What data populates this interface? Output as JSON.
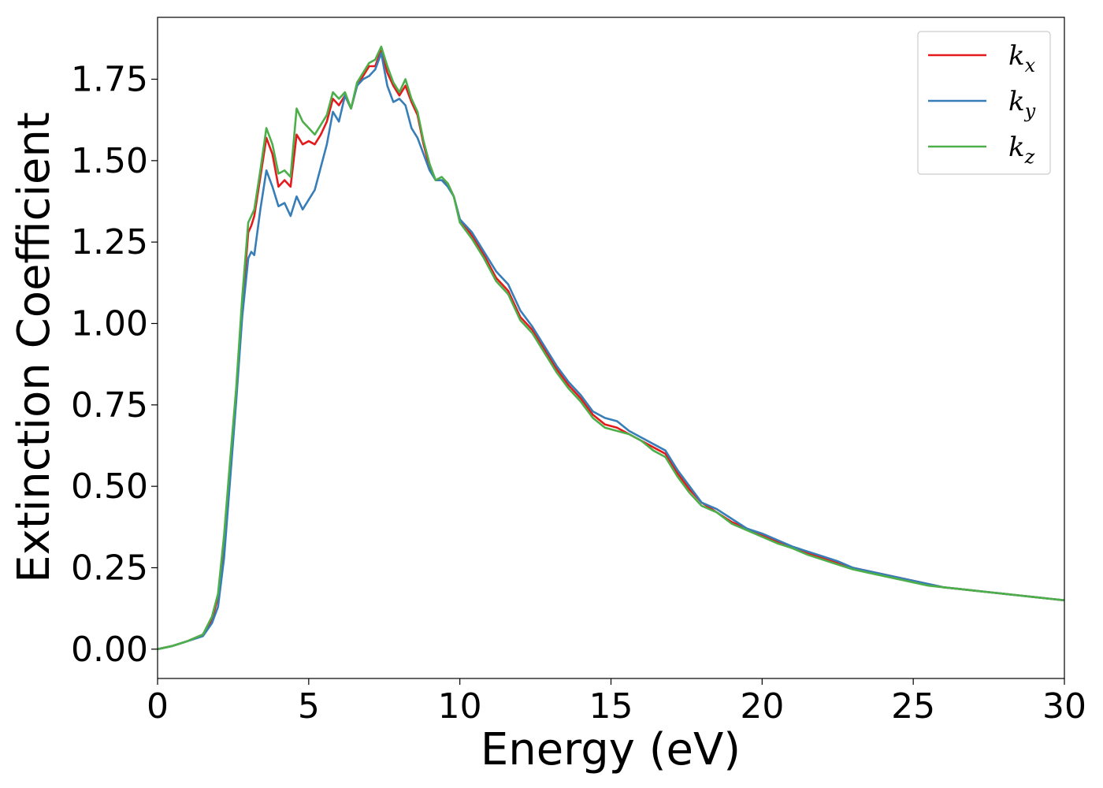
{
  "chart_data": {
    "type": "line",
    "title": "",
    "xlabel": "Energy (eV)",
    "ylabel": "Extinction Coefficient",
    "xlim": [
      0,
      30
    ],
    "ylim": [
      -0.09,
      1.94
    ],
    "xticks": [
      0,
      5,
      10,
      15,
      20,
      25,
      30
    ],
    "yticks": [
      0.0,
      0.25,
      0.5,
      0.75,
      1.0,
      1.25,
      1.5,
      1.75
    ],
    "xtick_labels": [
      "0",
      "5",
      "10",
      "15",
      "20",
      "25",
      "30"
    ],
    "ytick_labels": [
      "0.00",
      "0.25",
      "0.50",
      "0.75",
      "1.00",
      "1.25",
      "1.50",
      "1.75"
    ],
    "grid": false,
    "legend_position": "top-right",
    "series": [
      {
        "name": "k_x",
        "legend_main": "k",
        "legend_sub": "x",
        "color": "#e41a1c",
        "x": [
          0,
          0.5,
          1.0,
          1.5,
          1.8,
          2.0,
          2.2,
          2.4,
          2.6,
          2.8,
          3.0,
          3.1,
          3.2,
          3.4,
          3.6,
          3.8,
          4.0,
          4.2,
          4.4,
          4.6,
          4.8,
          5.0,
          5.2,
          5.4,
          5.6,
          5.8,
          6.0,
          6.2,
          6.4,
          6.6,
          6.8,
          7.0,
          7.2,
          7.4,
          7.6,
          7.8,
          8.0,
          8.2,
          8.4,
          8.6,
          8.8,
          9.0,
          9.2,
          9.4,
          9.6,
          9.8,
          10.0,
          10.4,
          10.8,
          11.2,
          11.6,
          12.0,
          12.4,
          12.8,
          13.2,
          13.6,
          14.0,
          14.4,
          14.8,
          15.2,
          15.6,
          16.0,
          16.4,
          16.8,
          17.2,
          17.6,
          18.0,
          18.5,
          19.0,
          19.5,
          20.0,
          20.5,
          21.0,
          21.5,
          22.0,
          22.5,
          23.0,
          23.5,
          24.0,
          24.5,
          25.0,
          25.5,
          26.0,
          26.5,
          27.0,
          27.5,
          28.0,
          28.5,
          29.0,
          29.5,
          30.0
        ],
        "y": [
          0.0,
          0.01,
          0.025,
          0.045,
          0.09,
          0.16,
          0.33,
          0.56,
          0.78,
          1.05,
          1.28,
          1.3,
          1.33,
          1.45,
          1.57,
          1.52,
          1.42,
          1.44,
          1.42,
          1.58,
          1.55,
          1.56,
          1.55,
          1.58,
          1.62,
          1.69,
          1.67,
          1.7,
          1.66,
          1.73,
          1.76,
          1.79,
          1.79,
          1.84,
          1.77,
          1.73,
          1.7,
          1.73,
          1.68,
          1.64,
          1.55,
          1.48,
          1.44,
          1.44,
          1.43,
          1.39,
          1.32,
          1.27,
          1.21,
          1.14,
          1.1,
          1.02,
          0.98,
          0.92,
          0.86,
          0.81,
          0.77,
          0.72,
          0.69,
          0.68,
          0.66,
          0.64,
          0.62,
          0.6,
          0.54,
          0.49,
          0.45,
          0.42,
          0.39,
          0.37,
          0.35,
          0.33,
          0.31,
          0.295,
          0.28,
          0.265,
          0.25,
          0.24,
          0.23,
          0.22,
          0.21,
          0.2,
          0.19,
          0.185,
          0.18,
          0.175,
          0.17,
          0.165,
          0.16,
          0.155,
          0.15
        ]
      },
      {
        "name": "k_y",
        "legend_main": "k",
        "legend_sub": "y",
        "color": "#377eb8",
        "x": [
          0,
          0.5,
          1.0,
          1.5,
          1.8,
          2.0,
          2.2,
          2.4,
          2.6,
          2.8,
          3.0,
          3.1,
          3.2,
          3.4,
          3.6,
          3.8,
          4.0,
          4.2,
          4.4,
          4.6,
          4.8,
          5.0,
          5.2,
          5.4,
          5.6,
          5.8,
          6.0,
          6.2,
          6.4,
          6.6,
          6.8,
          7.0,
          7.2,
          7.4,
          7.6,
          7.8,
          8.0,
          8.2,
          8.4,
          8.6,
          8.8,
          9.0,
          9.2,
          9.4,
          9.6,
          9.8,
          10.0,
          10.4,
          10.8,
          11.2,
          11.6,
          12.0,
          12.4,
          12.8,
          13.2,
          13.6,
          14.0,
          14.4,
          14.8,
          15.2,
          15.6,
          16.0,
          16.4,
          16.8,
          17.2,
          17.6,
          18.0,
          18.5,
          19.0,
          19.5,
          20.0,
          20.5,
          21.0,
          21.5,
          22.0,
          22.5,
          23.0,
          23.5,
          24.0,
          24.5,
          25.0,
          25.5,
          26.0,
          26.5,
          27.0,
          27.5,
          28.0,
          28.5,
          29.0,
          29.5,
          30.0
        ],
        "y": [
          0.0,
          0.01,
          0.025,
          0.04,
          0.08,
          0.13,
          0.28,
          0.52,
          0.76,
          1.02,
          1.2,
          1.22,
          1.21,
          1.35,
          1.47,
          1.42,
          1.36,
          1.37,
          1.33,
          1.39,
          1.35,
          1.38,
          1.41,
          1.48,
          1.55,
          1.65,
          1.62,
          1.7,
          1.66,
          1.73,
          1.75,
          1.76,
          1.78,
          1.83,
          1.73,
          1.68,
          1.69,
          1.67,
          1.6,
          1.57,
          1.52,
          1.47,
          1.44,
          1.44,
          1.42,
          1.39,
          1.32,
          1.28,
          1.22,
          1.16,
          1.12,
          1.04,
          0.99,
          0.93,
          0.87,
          0.82,
          0.78,
          0.73,
          0.71,
          0.7,
          0.67,
          0.65,
          0.63,
          0.61,
          0.55,
          0.5,
          0.45,
          0.43,
          0.4,
          0.37,
          0.355,
          0.335,
          0.315,
          0.3,
          0.285,
          0.27,
          0.25,
          0.24,
          0.23,
          0.22,
          0.21,
          0.2,
          0.19,
          0.185,
          0.18,
          0.175,
          0.17,
          0.165,
          0.16,
          0.155,
          0.15
        ]
      },
      {
        "name": "k_z",
        "legend_main": "k",
        "legend_sub": "z",
        "color": "#4daf4a",
        "x": [
          0,
          0.5,
          1.0,
          1.5,
          1.8,
          2.0,
          2.2,
          2.4,
          2.6,
          2.8,
          3.0,
          3.1,
          3.2,
          3.4,
          3.6,
          3.8,
          4.0,
          4.2,
          4.4,
          4.6,
          4.8,
          5.0,
          5.2,
          5.4,
          5.6,
          5.8,
          6.0,
          6.2,
          6.4,
          6.6,
          6.8,
          7.0,
          7.2,
          7.4,
          7.6,
          7.8,
          8.0,
          8.2,
          8.4,
          8.6,
          8.8,
          9.0,
          9.2,
          9.4,
          9.6,
          9.8,
          10.0,
          10.4,
          10.8,
          11.2,
          11.6,
          12.0,
          12.4,
          12.8,
          13.2,
          13.6,
          14.0,
          14.4,
          14.8,
          15.2,
          15.6,
          16.0,
          16.4,
          16.8,
          17.2,
          17.6,
          18.0,
          18.5,
          19.0,
          19.5,
          20.0,
          20.5,
          21.0,
          21.5,
          22.0,
          22.5,
          23.0,
          23.5,
          24.0,
          24.5,
          25.0,
          25.5,
          26.0,
          26.5,
          27.0,
          27.5,
          28.0,
          28.5,
          29.0,
          29.5,
          30.0
        ],
        "y": [
          0.0,
          0.01,
          0.025,
          0.045,
          0.1,
          0.17,
          0.35,
          0.58,
          0.8,
          1.08,
          1.31,
          1.33,
          1.35,
          1.47,
          1.6,
          1.55,
          1.46,
          1.47,
          1.45,
          1.66,
          1.62,
          1.6,
          1.58,
          1.61,
          1.64,
          1.71,
          1.69,
          1.71,
          1.66,
          1.74,
          1.77,
          1.8,
          1.81,
          1.85,
          1.79,
          1.74,
          1.71,
          1.75,
          1.69,
          1.65,
          1.56,
          1.49,
          1.44,
          1.45,
          1.43,
          1.39,
          1.31,
          1.26,
          1.2,
          1.13,
          1.09,
          1.01,
          0.97,
          0.91,
          0.85,
          0.8,
          0.76,
          0.71,
          0.68,
          0.67,
          0.66,
          0.64,
          0.61,
          0.59,
          0.53,
          0.48,
          0.44,
          0.42,
          0.385,
          0.365,
          0.345,
          0.325,
          0.31,
          0.29,
          0.275,
          0.26,
          0.245,
          0.235,
          0.225,
          0.215,
          0.205,
          0.195,
          0.19,
          0.185,
          0.18,
          0.175,
          0.17,
          0.165,
          0.16,
          0.155,
          0.15
        ]
      }
    ]
  }
}
